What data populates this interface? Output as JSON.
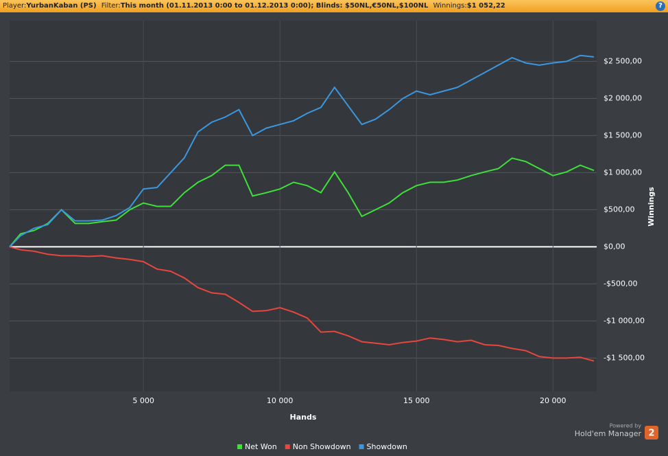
{
  "header": {
    "player_label": "Player:",
    "player": "YurbanKaban (PS)",
    "filter_label": "Filter:",
    "filter": "This month (01.11.2013 0:00 to 01.12.2013 0:00); Blinds: $50NL,€50NL,$100NL",
    "winnings_label": "Winnings:",
    "winnings": "$1 052,22",
    "help": "?"
  },
  "branding": {
    "powered": "Powered by",
    "product": "Hold'em Manager",
    "version": "2"
  },
  "chart_data": {
    "type": "line",
    "x_label": "Hands",
    "y_label": "Winnings",
    "grid": true,
    "legend": "bottom",
    "xlim": [
      100,
      21600
    ],
    "ylim": [
      -1950,
      3050
    ],
    "xticks": [
      {
        "value": 5000,
        "label": "5 000"
      },
      {
        "value": 10000,
        "label": "10 000"
      },
      {
        "value": 15000,
        "label": "15 000"
      },
      {
        "value": 20000,
        "label": "20 000"
      }
    ],
    "yticks": [
      {
        "value": -1500,
        "label": "-$1 500,00"
      },
      {
        "value": -1000,
        "label": "-$1 000,00"
      },
      {
        "value": -500,
        "label": "-$500,00"
      },
      {
        "value": 0,
        "label": "$0,00"
      },
      {
        "value": 500,
        "label": "$500,00"
      },
      {
        "value": 1000,
        "label": "$1 000,00"
      },
      {
        "value": 1500,
        "label": "$1 500,00"
      },
      {
        "value": 2000,
        "label": "$2 000,00"
      },
      {
        "value": 2500,
        "label": "$2 500,00"
      }
    ],
    "x": [
      100,
      500,
      1000,
      1500,
      2000,
      2500,
      3000,
      3500,
      4000,
      4500,
      5000,
      5500,
      6000,
      6500,
      7000,
      7500,
      8000,
      8500,
      9000,
      9500,
      10000,
      10500,
      11000,
      11500,
      12000,
      12500,
      13000,
      13500,
      14000,
      14500,
      15000,
      15500,
      16000,
      16500,
      17000,
      17500,
      18000,
      18500,
      19000,
      19500,
      20000,
      20500,
      21000,
      21500
    ],
    "series": [
      {
        "name": "Net Won",
        "color": "#3ee03a",
        "values": [
          0,
          175,
          220,
          315,
          500,
          315,
          315,
          340,
          360,
          500,
          590,
          545,
          545,
          730,
          870,
          960,
          1100,
          1100,
          685,
          730,
          780,
          870,
          825,
          730,
          1010,
          730,
          410,
          500,
          590,
          730,
          825,
          870,
          870,
          900,
          960,
          1010,
          1055,
          1195,
          1150,
          1055,
          960,
          1010,
          1100,
          1030
        ]
      },
      {
        "name": "Non Showdown",
        "color": "#e8463e",
        "values": [
          0,
          -40,
          -60,
          -100,
          -120,
          -120,
          -130,
          -120,
          -150,
          -170,
          -200,
          -300,
          -330,
          -420,
          -550,
          -620,
          -640,
          -750,
          -870,
          -860,
          -820,
          -880,
          -960,
          -1150,
          -1140,
          -1200,
          -1280,
          -1300,
          -1320,
          -1290,
          -1270,
          -1230,
          -1250,
          -1280,
          -1260,
          -1320,
          -1330,
          -1370,
          -1400,
          -1480,
          -1500,
          -1500,
          -1490,
          -1540
        ]
      },
      {
        "name": "Showdown",
        "color": "#3b98e0",
        "values": [
          0,
          150,
          250,
          300,
          500,
          350,
          350,
          360,
          420,
          530,
          780,
          800,
          1000,
          1200,
          1550,
          1680,
          1750,
          1850,
          1500,
          1600,
          1650,
          1700,
          1800,
          1880,
          2150,
          1900,
          1650,
          1720,
          1850,
          2000,
          2100,
          2050,
          2100,
          2150,
          2250,
          2350,
          2450,
          2550,
          2480,
          2450,
          2480,
          2500,
          2580,
          2560
        ]
      }
    ]
  }
}
